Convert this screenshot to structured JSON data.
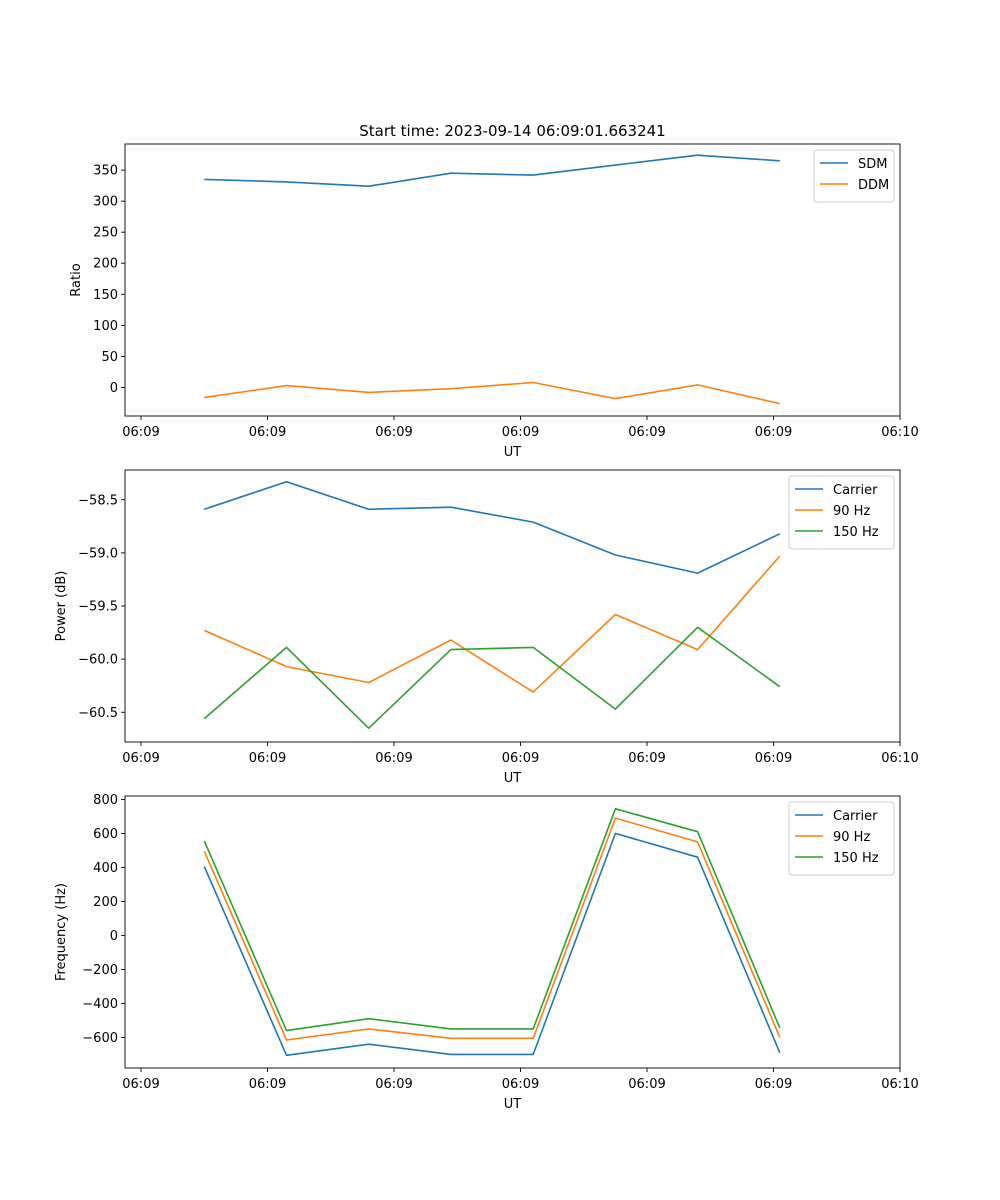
{
  "figure_title": "Start time: 2023-09-14 06:09:01.663241",
  "colors": {
    "blue": "#1f77b4",
    "orange": "#ff7f0e",
    "green": "#2ca02c",
    "axis": "#000000",
    "legend_border": "#cccccc"
  },
  "chart_data": [
    {
      "type": "line",
      "title": "Start time: 2023-09-14 06:09:01.663241",
      "xlabel": "UT",
      "ylabel": "Ratio",
      "xlim": [
        0,
        6.0
      ],
      "ylim": [
        -46,
        392
      ],
      "x_tick_positions": [
        0,
        1,
        2,
        3,
        4,
        5,
        6
      ],
      "x_tick_labels": [
        "06:09",
        "06:09",
        "06:09",
        "06:09",
        "06:09",
        "06:09",
        "06:10"
      ],
      "y_ticks": [
        0,
        50,
        100,
        150,
        200,
        250,
        300,
        350
      ],
      "y_tick_labels": [
        "0",
        "50",
        "100",
        "150",
        "200",
        "250",
        "300",
        "350"
      ],
      "legend": "top-right",
      "x": [
        0.5,
        1.15,
        1.8,
        2.45,
        3.1,
        3.75,
        4.4,
        5.05
      ],
      "series": [
        {
          "name": "SDM",
          "color": "#1f77b4",
          "values": [
            335,
            331,
            324,
            345,
            342,
            358,
            374,
            365
          ]
        },
        {
          "name": "DDM",
          "color": "#ff7f0e",
          "values": [
            -16,
            3,
            -8,
            -2,
            8,
            -18,
            4,
            -26
          ]
        }
      ]
    },
    {
      "type": "line",
      "title": "",
      "xlabel": "UT",
      "ylabel": "Power (dB)",
      "xlim": [
        0,
        6.0
      ],
      "ylim": [
        -60.78,
        -58.22
      ],
      "x_tick_positions": [
        0,
        1,
        2,
        3,
        4,
        5,
        6
      ],
      "x_tick_labels": [
        "06:09",
        "06:09",
        "06:09",
        "06:09",
        "06:09",
        "06:09",
        "06:10"
      ],
      "y_ticks": [
        -60.5,
        -60.0,
        -59.5,
        -59.0,
        -58.5
      ],
      "y_tick_labels": [
        "−60.5",
        "−60.0",
        "−59.5",
        "−59.0",
        "−58.5"
      ],
      "legend": "top-right",
      "x": [
        0.5,
        1.15,
        1.8,
        2.45,
        3.1,
        3.75,
        4.4,
        5.05
      ],
      "series": [
        {
          "name": "Carrier",
          "color": "#1f77b4",
          "values": [
            -58.59,
            -58.33,
            -58.59,
            -58.57,
            -58.71,
            -59.02,
            -59.19,
            -58.82
          ]
        },
        {
          "name": "90 Hz",
          "color": "#ff7f0e",
          "values": [
            -59.73,
            -60.07,
            -60.22,
            -59.82,
            -60.31,
            -59.58,
            -59.91,
            -59.03
          ]
        },
        {
          "name": "150 Hz",
          "color": "#2ca02c",
          "values": [
            -60.56,
            -59.89,
            -60.65,
            -59.91,
            -59.89,
            -60.47,
            -59.7,
            -60.26
          ]
        }
      ]
    },
    {
      "type": "line",
      "title": "",
      "xlabel": "UT",
      "ylabel": "Frequency (Hz)",
      "xlim": [
        0,
        6.0
      ],
      "ylim": [
        -780,
        820
      ],
      "x_tick_positions": [
        0,
        1,
        2,
        3,
        4,
        5,
        6
      ],
      "x_tick_labels": [
        "06:09",
        "06:09",
        "06:09",
        "06:09",
        "06:09",
        "06:09",
        "06:10"
      ],
      "y_ticks": [
        -600,
        -400,
        -200,
        0,
        200,
        400,
        600,
        800
      ],
      "y_tick_labels": [
        "−600",
        "−400",
        "−200",
        "0",
        "200",
        "400",
        "600",
        "800"
      ],
      "legend": "top-right",
      "x": [
        0.5,
        1.15,
        1.8,
        2.45,
        3.1,
        3.75,
        4.4,
        5.05
      ],
      "series": [
        {
          "name": "Carrier",
          "color": "#1f77b4",
          "values": [
            405,
            -705,
            -640,
            -700,
            -700,
            600,
            460,
            -690
          ]
        },
        {
          "name": "90 Hz",
          "color": "#ff7f0e",
          "values": [
            495,
            -615,
            -550,
            -605,
            -605,
            690,
            550,
            -600
          ]
        },
        {
          "name": "150 Hz",
          "color": "#2ca02c",
          "values": [
            555,
            -560,
            -490,
            -550,
            -550,
            745,
            610,
            -545
          ]
        }
      ]
    }
  ]
}
